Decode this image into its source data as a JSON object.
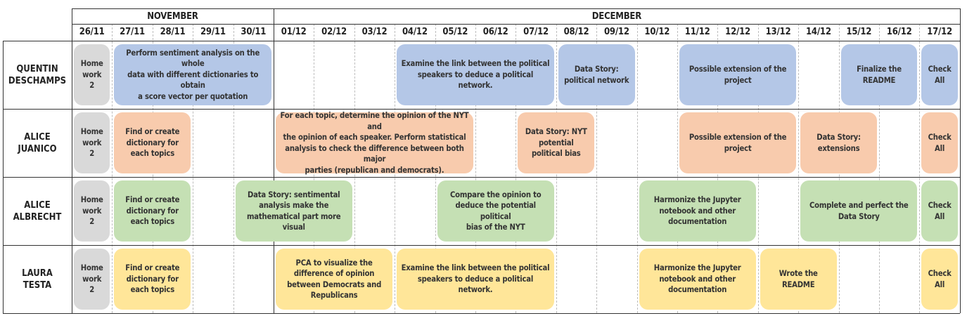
{
  "months": [
    {
      "label": "NOVEMBER",
      "start": 0,
      "end": 5
    },
    {
      "label": "DECEMBER",
      "start": 5,
      "end": 22
    }
  ],
  "dates": [
    "26/11",
    "27/11",
    "28/11",
    "29/11",
    "30/11",
    "01/12",
    "02/12",
    "03/12",
    "04/12",
    "05/12",
    "06/12",
    "07/12",
    "08/12",
    "09/12",
    "10/12",
    "11/12",
    "12/12",
    "13/12",
    "14/12",
    "15/12",
    "16/12",
    "17/12"
  ],
  "colors": {
    "blue": "#b4c7e7",
    "orange": "#f8cbad",
    "green": "#c5e0b4",
    "yellow": "#ffe699",
    "gray": "#d9d9d9"
  },
  "people": [
    {
      "name": "QUENTIN\nDESCHAMPS",
      "tasks": [
        {
          "start": 0,
          "end": 1,
          "color": "gray",
          "text": "Home\nwork\n2"
        },
        {
          "start": 1,
          "end": 5,
          "color": "blue",
          "text": "Perform sentiment analysis on the whole\ndata with different dictionaries to obtain\na score vector per quotation"
        },
        {
          "start": 8,
          "end": 12,
          "color": "blue",
          "text": "Examine the link between the political\nspeakers to deduce a political network."
        },
        {
          "start": 12,
          "end": 14,
          "color": "blue",
          "text": "Data Story:\npolitical network"
        },
        {
          "start": 15,
          "end": 18,
          "color": "blue",
          "text": "Possible extension of the\nproject"
        },
        {
          "start": 19,
          "end": 21,
          "color": "blue",
          "text": "Finalize the\nREADME"
        },
        {
          "start": 21,
          "end": 22,
          "color": "blue",
          "text": "Check\nAll"
        }
      ]
    },
    {
      "name": "ALICE\nJUANICO",
      "tasks": [
        {
          "start": 0,
          "end": 1,
          "color": "gray",
          "text": "Home\nwork\n2"
        },
        {
          "start": 1,
          "end": 3,
          "color": "orange",
          "text": "Find or create\ndictionary for\neach topics"
        },
        {
          "start": 5,
          "end": 10,
          "color": "orange",
          "text": "For each topic, determine the opinion of the NYT and\nthe opinion of each speaker. Perform statistical\nanalysis to check the difference between both major\nparties (republican and democrats)."
        },
        {
          "start": 11,
          "end": 13,
          "color": "orange",
          "text": "Data Story: NYT\npotential\npolitical bias"
        },
        {
          "start": 15,
          "end": 18,
          "color": "orange",
          "text": "Possible extension of the\nproject"
        },
        {
          "start": 18,
          "end": 20,
          "color": "orange",
          "text": "Data Story:\nextensions"
        },
        {
          "start": 21,
          "end": 22,
          "color": "orange",
          "text": "Check\nAll"
        }
      ]
    },
    {
      "name": "ALICE\nALBRECHT",
      "tasks": [
        {
          "start": 0,
          "end": 1,
          "color": "gray",
          "text": "Home\nwork\n2"
        },
        {
          "start": 1,
          "end": 3,
          "color": "green",
          "text": "Find or create\ndictionary for\neach topics"
        },
        {
          "start": 4,
          "end": 7,
          "color": "green",
          "text": "Data Story: sentimental\nanalysis make the\nmathematical part more\nvisual"
        },
        {
          "start": 9,
          "end": 12,
          "color": "green",
          "text": "Compare the opinion to\ndeduce the potential political\nbias of the NYT"
        },
        {
          "start": 14,
          "end": 17,
          "color": "green",
          "text": "Harmonize the Jupyter\nnotebook and other\ndocumentation"
        },
        {
          "start": 18,
          "end": 21,
          "color": "green",
          "text": "Complete and perfect the\nData Story"
        },
        {
          "start": 21,
          "end": 22,
          "color": "green",
          "text": "Check\nAll"
        }
      ]
    },
    {
      "name": "LAURA\nTESTA",
      "tasks": [
        {
          "start": 0,
          "end": 1,
          "color": "gray",
          "text": "Home\nwork\n2"
        },
        {
          "start": 1,
          "end": 3,
          "color": "yellow",
          "text": "Find or create\ndictionary for\neach topics"
        },
        {
          "start": 5,
          "end": 8,
          "color": "yellow",
          "text": "PCA to visualize the\ndifference of opinion\nbetween Democrats and\nRepublicans"
        },
        {
          "start": 8,
          "end": 12,
          "color": "yellow",
          "text": "Examine the link between the political\nspeakers to deduce a political network."
        },
        {
          "start": 14,
          "end": 17,
          "color": "yellow",
          "text": "Harmonize the Jupyter\nnotebook and other\ndocumentation"
        },
        {
          "start": 17,
          "end": 19,
          "color": "yellow",
          "text": "Wrote the\nREADME"
        },
        {
          "start": 21,
          "end": 22,
          "color": "yellow",
          "text": "Check\nAll"
        }
      ]
    }
  ]
}
